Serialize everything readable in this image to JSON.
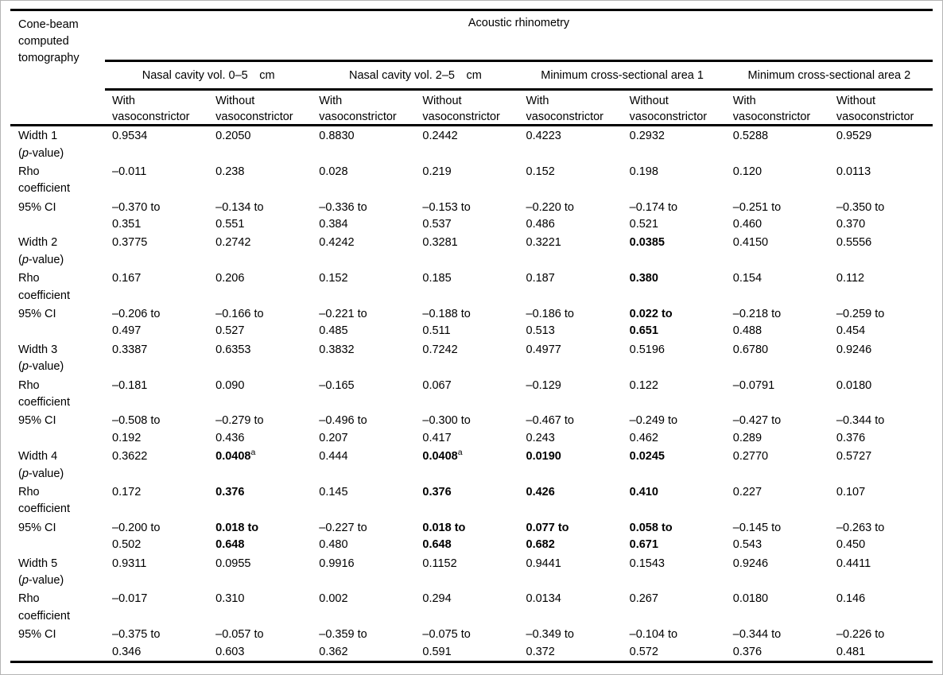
{
  "colors": {
    "rule": "#000000",
    "page_border": "#b4b4b4",
    "background": "#ffffff",
    "text": "#000000"
  },
  "header": {
    "row_header": "Cone-beam\ncomputed\ntomography",
    "span_header": "Acoustic rhinometry",
    "groups": [
      "Nasal cavity vol. 0–5 cm",
      "Nasal cavity vol. 2–5 cm",
      "Minimum cross-sectional area 1",
      "Minimum cross-sectional area 2"
    ],
    "subcolumns": [
      "With vasoconstrictor",
      "Without vasoconstrictor",
      "With vasoconstrictor",
      "Without vasoconstrictor",
      "With vasoconstrictor",
      "Without vasoconstrictor",
      "With vasoconstrictor",
      "Without vasoconstrictor"
    ]
  },
  "rows": [
    {
      "label": "Width 1\n(p-value)",
      "cells": [
        "0.9534",
        "0.2050",
        "0.8830",
        "0.2442",
        "0.4223",
        "0.2932",
        "0.5288",
        "0.9529"
      ]
    },
    {
      "label": "Rho\ncoefficient",
      "cells": [
        "–0.011",
        "0.238",
        "0.028",
        "0.219",
        "0.152",
        "0.198",
        "0.120",
        "0.0113"
      ]
    },
    {
      "label": "95% CI",
      "cells": [
        "–0.370 to\n0.351",
        "–0.134 to\n0.551",
        "–0.336 to\n0.384",
        "–0.153 to\n0.537",
        "–0.220 to\n0.486",
        "–0.174 to\n0.521",
        "–0.251 to\n0.460",
        "–0.350 to\n0.370"
      ]
    },
    {
      "label": "Width 2\n(p-value)",
      "cells": [
        "0.3775",
        "0.2742",
        "0.4242",
        "0.3281",
        "0.3221",
        {
          "t": "0.0385",
          "b": true
        },
        "0.4150",
        "0.5556"
      ]
    },
    {
      "label": "Rho\ncoefficient",
      "cells": [
        "0.167",
        "0.206",
        "0.152",
        "0.185",
        "0.187",
        {
          "t": "0.380",
          "b": true
        },
        "0.154",
        "0.112"
      ]
    },
    {
      "label": "95% CI",
      "cells": [
        "–0.206 to\n0.497",
        "–0.166 to\n0.527",
        "–0.221 to\n0.485",
        "–0.188 to\n0.511",
        "–0.186 to\n0.513",
        {
          "t": "0.022 to\n0.651",
          "b": true
        },
        "–0.218 to\n0.488",
        "–0.259 to\n0.454"
      ]
    },
    {
      "label": "Width 3\n(p-value)",
      "cells": [
        "0.3387",
        "0.6353",
        "0.3832",
        "0.7242",
        "0.4977",
        "0.5196",
        "0.6780",
        "0.9246"
      ]
    },
    {
      "label": "Rho\ncoefficient",
      "cells": [
        "–0.181",
        "0.090",
        "–0.165",
        "0.067",
        "–0.129",
        "0.122",
        "–0.0791",
        "0.0180"
      ]
    },
    {
      "label": "95% CI",
      "cells": [
        "–0.508 to\n0.192",
        "–0.279 to\n0.436",
        "–0.496 to\n0.207",
        "–0.300 to\n0.417",
        "–0.467 to\n0.243",
        "–0.249 to\n0.462",
        "–0.427 to\n0.289",
        "–0.344 to\n0.376"
      ]
    },
    {
      "label": "Width 4\n(p-value)",
      "cells": [
        "0.3622",
        {
          "t": "0.0408",
          "b": true,
          "sup": "a"
        },
        "0.444",
        {
          "t": "0.0408",
          "b": true,
          "sup": "a"
        },
        {
          "t": "0.0190",
          "b": true
        },
        {
          "t": "0.0245",
          "b": true
        },
        "0.2770",
        "0.5727"
      ]
    },
    {
      "label": "Rho\ncoefficient",
      "cells": [
        "0.172",
        {
          "t": "0.376",
          "b": true
        },
        "0.145",
        {
          "t": "0.376",
          "b": true
        },
        {
          "t": "0.426",
          "b": true
        },
        {
          "t": "0.410",
          "b": true
        },
        "0.227",
        "0.107"
      ]
    },
    {
      "label": "95% CI",
      "cells": [
        "–0.200 to\n0.502",
        {
          "t": "0.018 to\n0.648",
          "b": true
        },
        "–0.227 to\n0.480",
        {
          "t": "0.018 to\n0.648",
          "b": true
        },
        {
          "t": "0.077 to\n0.682",
          "b": true
        },
        {
          "t": "0.058 to\n0.671",
          "b": true
        },
        "–0.145 to\n0.543",
        "–0.263 to\n0.450"
      ]
    },
    {
      "label": "Width 5\n(p-value)",
      "cells": [
        "0.9311",
        "0.0955",
        "0.9916",
        "0.1152",
        "0.9441",
        "0.1543",
        "0.9246",
        "0.4411"
      ]
    },
    {
      "label": "Rho\ncoefficient",
      "cells": [
        "–0.017",
        "0.310",
        "0.002",
        "0.294",
        "0.0134",
        "0.267",
        "0.0180",
        "0.146"
      ]
    },
    {
      "label": "95% CI",
      "cells": [
        "–0.375 to\n0.346",
        "–0.057 to\n0.603",
        "–0.359 to\n0.362",
        "–0.075 to\n0.591",
        "–0.349 to\n0.372",
        "–0.104 to\n0.572",
        "–0.344 to\n0.376",
        "–0.226 to\n0.481"
      ]
    }
  ]
}
